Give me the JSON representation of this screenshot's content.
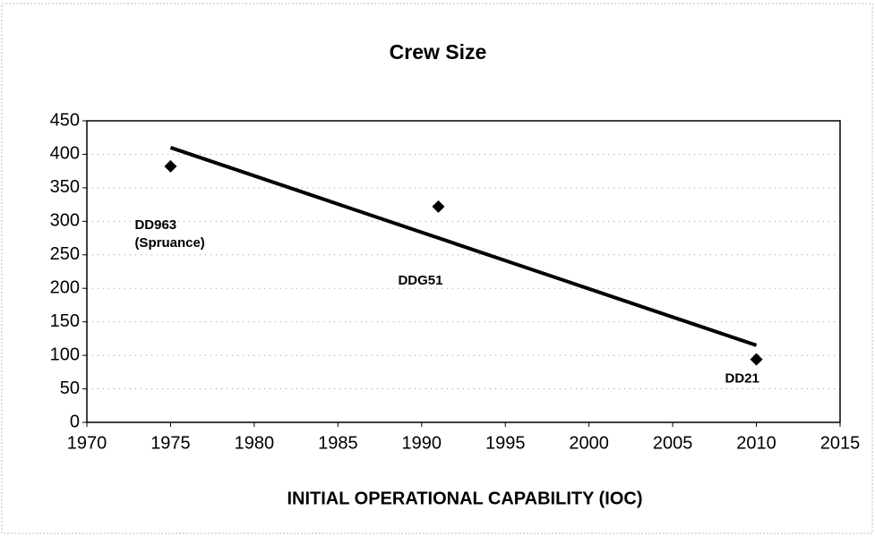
{
  "chart_data": {
    "type": "scatter",
    "title": "Crew Size",
    "xlabel": "INITIAL OPERATIONAL CAPABILITY (IOC)",
    "x": [
      1975,
      1991,
      2010
    ],
    "values": [
      382,
      322,
      94
    ],
    "color": "#000000",
    "point_labels": [
      [
        "DD963",
        "(Spruance)"
      ],
      [
        "DDG51"
      ],
      [
        "DD21"
      ]
    ],
    "trendline": {
      "x": [
        1975,
        2010
      ],
      "values": [
        410,
        115
      ],
      "color": "#000000"
    },
    "xlim": [
      1970,
      2015
    ],
    "xticks": [
      1970,
      1975,
      1980,
      1985,
      1990,
      1995,
      2000,
      2005,
      2010,
      2015
    ],
    "ylim": [
      0,
      450
    ],
    "yticks": [
      0,
      50,
      100,
      150,
      200,
      250,
      300,
      350,
      400,
      450
    ],
    "grid": true
  }
}
